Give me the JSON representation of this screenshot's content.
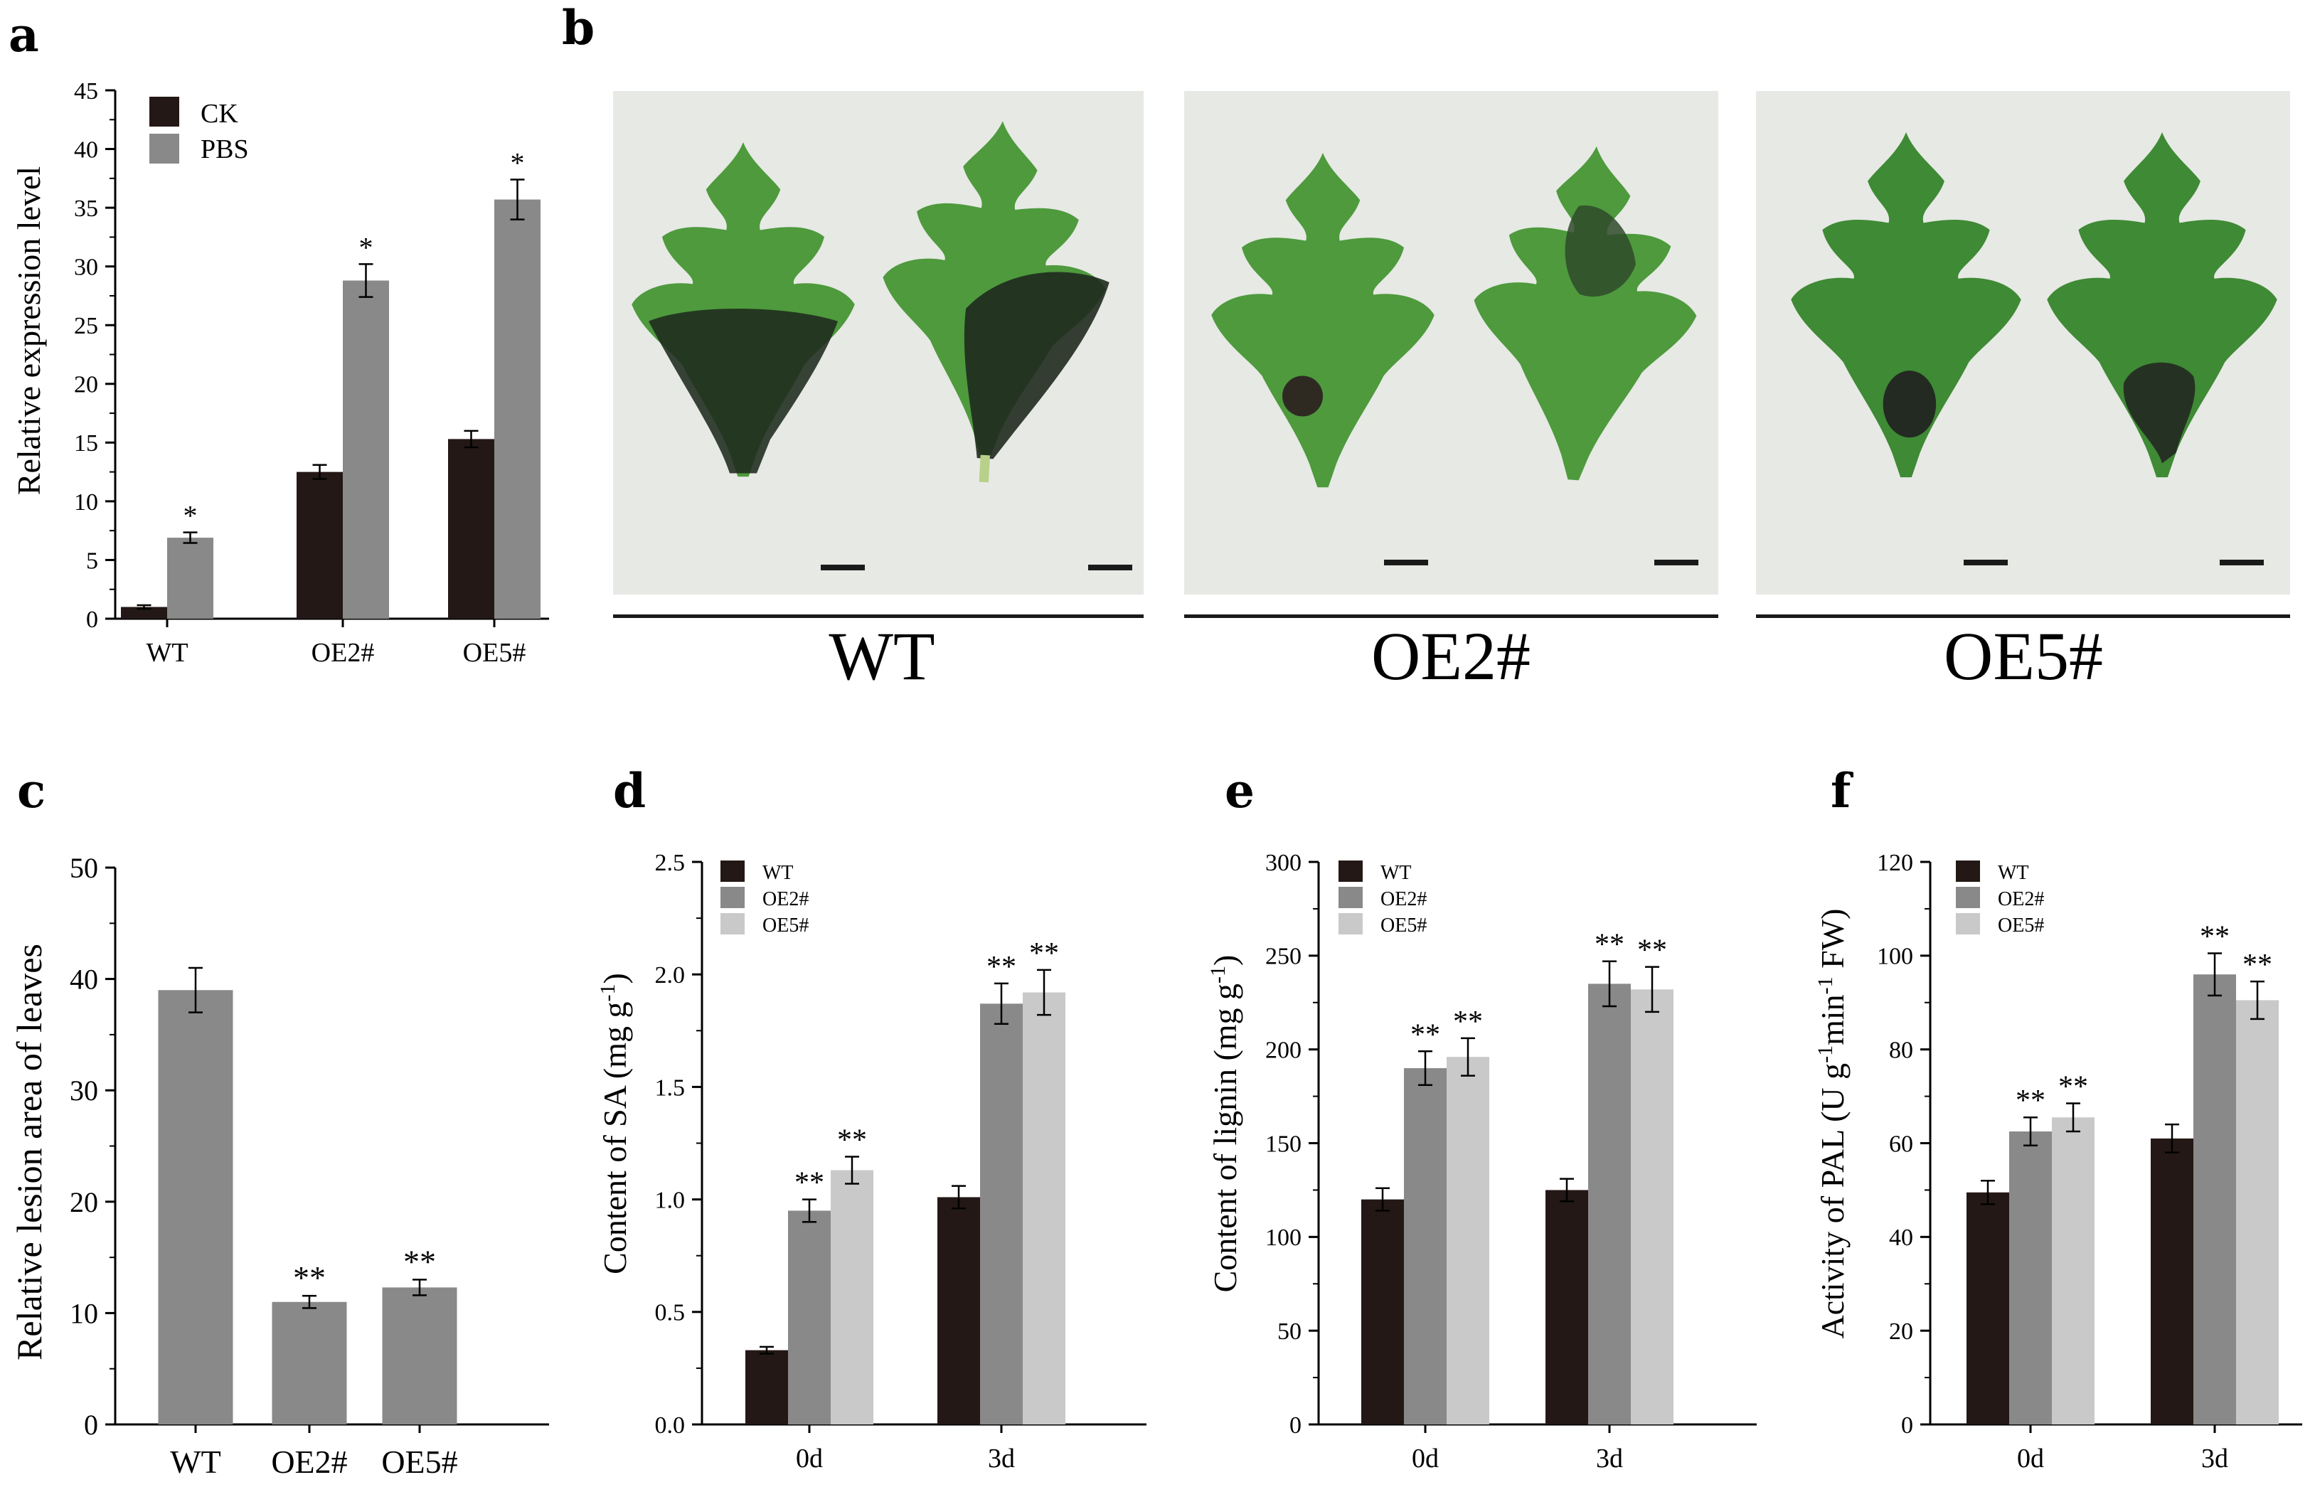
{
  "figure": {
    "colors": {
      "ck": "#231815",
      "pbs": "#898989",
      "wt": "#231815",
      "oe2": "#898989",
      "oe5": "#c9c9c9",
      "leaf": "#4e9a3d",
      "leaf_dark": "#2f6b2a",
      "lesion": "#1f2a1e",
      "photo_bg": "#e6e9e4"
    }
  },
  "panel_a": {
    "letter": "a",
    "ylabel": "Relative expression level",
    "legend": [
      "CK",
      "PBS"
    ],
    "categories": [
      "WT",
      "OE2#",
      "OE5#"
    ]
  },
  "panel_b": {
    "letter": "b",
    "labels": [
      "WT",
      "OE2#",
      "OE5#"
    ]
  },
  "panel_c": {
    "letter": "c",
    "ylabel": "Relative lesion area of leaves",
    "categories": [
      "WT",
      "OE2#",
      "OE5#"
    ]
  },
  "panel_d": {
    "letter": "d",
    "ylabel_main": "Content of SA (mg g",
    "ylabel_sup": "-1",
    "ylabel_end": ")",
    "legend": [
      "WT",
      "OE2#",
      "OE5#"
    ],
    "categories": [
      "0d",
      "3d"
    ]
  },
  "panel_e": {
    "letter": "e",
    "ylabel_main": "Content of lignin (mg g",
    "ylabel_sup": "-1",
    "ylabel_end": ")",
    "legend": [
      "WT",
      "OE2#",
      "OE5#"
    ],
    "categories": [
      "0d",
      "3d"
    ]
  },
  "panel_f": {
    "letter": "f",
    "ylabel_p1": "Activity of PAL  (U g",
    "ylabel_sup1": "-1",
    "ylabel_p2": "min",
    "ylabel_sup2": "-1",
    "ylabel_p3": " FW)",
    "legend": [
      "WT",
      "OE2#",
      "OE5#"
    ],
    "categories": [
      "0d",
      "3d"
    ]
  },
  "chart_data": [
    {
      "id": "a",
      "type": "bar",
      "xlabel": "",
      "ylabel": "Relative expression level",
      "ylim": [
        0,
        45
      ],
      "yticks": [
        0,
        5,
        10,
        15,
        20,
        25,
        30,
        35,
        40,
        45
      ],
      "categories": [
        "WT",
        "OE2#",
        "OE5#"
      ],
      "series": [
        {
          "name": "CK",
          "values": [
            1.0,
            12.5,
            15.3
          ],
          "errors": [
            0.15,
            0.6,
            0.7
          ]
        },
        {
          "name": "PBS",
          "values": [
            6.9,
            28.8,
            35.7
          ],
          "errors": [
            0.45,
            1.4,
            1.7
          ]
        }
      ],
      "annotations": [
        {
          "series": "PBS",
          "category": "WT",
          "text": "*"
        },
        {
          "series": "PBS",
          "category": "OE2#",
          "text": "*"
        },
        {
          "series": "PBS",
          "category": "OE5#",
          "text": "*"
        }
      ],
      "legend": "top-left"
    },
    {
      "id": "c",
      "type": "bar",
      "xlabel": "",
      "ylabel": "Relative lesion area of leaves",
      "ylim": [
        0,
        50
      ],
      "yticks": [
        0,
        10,
        20,
        30,
        40,
        50
      ],
      "categories": [
        "WT",
        "OE2#",
        "OE5#"
      ],
      "values": [
        39.0,
        11.0,
        12.3
      ],
      "errors": [
        2.0,
        0.55,
        0.7
      ],
      "annotations": [
        {
          "category": "OE2#",
          "text": "**"
        },
        {
          "category": "OE5#",
          "text": "**"
        }
      ]
    },
    {
      "id": "d",
      "type": "bar",
      "xlabel": "",
      "ylabel": "Content of SA (mg g-1)",
      "ylim": [
        0,
        2.5
      ],
      "yticks": [
        0.0,
        0.5,
        1.0,
        1.5,
        2.0,
        2.5
      ],
      "categories": [
        "0d",
        "3d"
      ],
      "series": [
        {
          "name": "WT",
          "values": [
            0.33,
            1.01
          ],
          "errors": [
            0.015,
            0.05
          ]
        },
        {
          "name": "OE2#",
          "values": [
            0.95,
            1.87
          ],
          "errors": [
            0.05,
            0.09
          ]
        },
        {
          "name": "OE5#",
          "values": [
            1.13,
            1.92
          ],
          "errors": [
            0.06,
            0.1
          ]
        }
      ],
      "annotations": [
        {
          "series": "OE2#",
          "category": "0d",
          "text": "**"
        },
        {
          "series": "OE5#",
          "category": "0d",
          "text": "**"
        },
        {
          "series": "OE2#",
          "category": "3d",
          "text": "**"
        },
        {
          "series": "OE5#",
          "category": "3d",
          "text": "**"
        }
      ],
      "legend": "top-left"
    },
    {
      "id": "e",
      "type": "bar",
      "xlabel": "",
      "ylabel": "Content of lignin (mg g-1)",
      "ylim": [
        0,
        300
      ],
      "yticks": [
        0,
        50,
        100,
        150,
        200,
        250,
        300
      ],
      "categories": [
        "0d",
        "3d"
      ],
      "series": [
        {
          "name": "WT",
          "values": [
            120,
            125
          ],
          "errors": [
            6,
            6
          ]
        },
        {
          "name": "OE2#",
          "values": [
            190,
            235
          ],
          "errors": [
            9,
            12
          ]
        },
        {
          "name": "OE5#",
          "values": [
            196,
            232
          ],
          "errors": [
            10,
            12
          ]
        }
      ],
      "annotations": [
        {
          "series": "OE2#",
          "category": "0d",
          "text": "**"
        },
        {
          "series": "OE5#",
          "category": "0d",
          "text": "**"
        },
        {
          "series": "OE2#",
          "category": "3d",
          "text": "**"
        },
        {
          "series": "OE5#",
          "category": "3d",
          "text": "**"
        }
      ],
      "legend": "top-left"
    },
    {
      "id": "f",
      "type": "bar",
      "xlabel": "",
      "ylabel": "Activity of PAL (U g-1 min-1 FW)",
      "ylim": [
        0,
        120
      ],
      "yticks": [
        0,
        20,
        40,
        60,
        80,
        100,
        120
      ],
      "categories": [
        "0d",
        "3d"
      ],
      "series": [
        {
          "name": "WT",
          "values": [
            49.5,
            61
          ],
          "errors": [
            2.5,
            3
          ]
        },
        {
          "name": "OE2#",
          "values": [
            62.5,
            96
          ],
          "errors": [
            3,
            4.5
          ]
        },
        {
          "name": "OE5#",
          "values": [
            65.5,
            90.5
          ],
          "errors": [
            3,
            4
          ]
        }
      ],
      "annotations": [
        {
          "series": "OE2#",
          "category": "0d",
          "text": "**"
        },
        {
          "series": "OE5#",
          "category": "0d",
          "text": "**"
        },
        {
          "series": "OE2#",
          "category": "3d",
          "text": "**"
        },
        {
          "series": "OE5#",
          "category": "3d",
          "text": "**"
        }
      ],
      "legend": "top-left"
    }
  ]
}
